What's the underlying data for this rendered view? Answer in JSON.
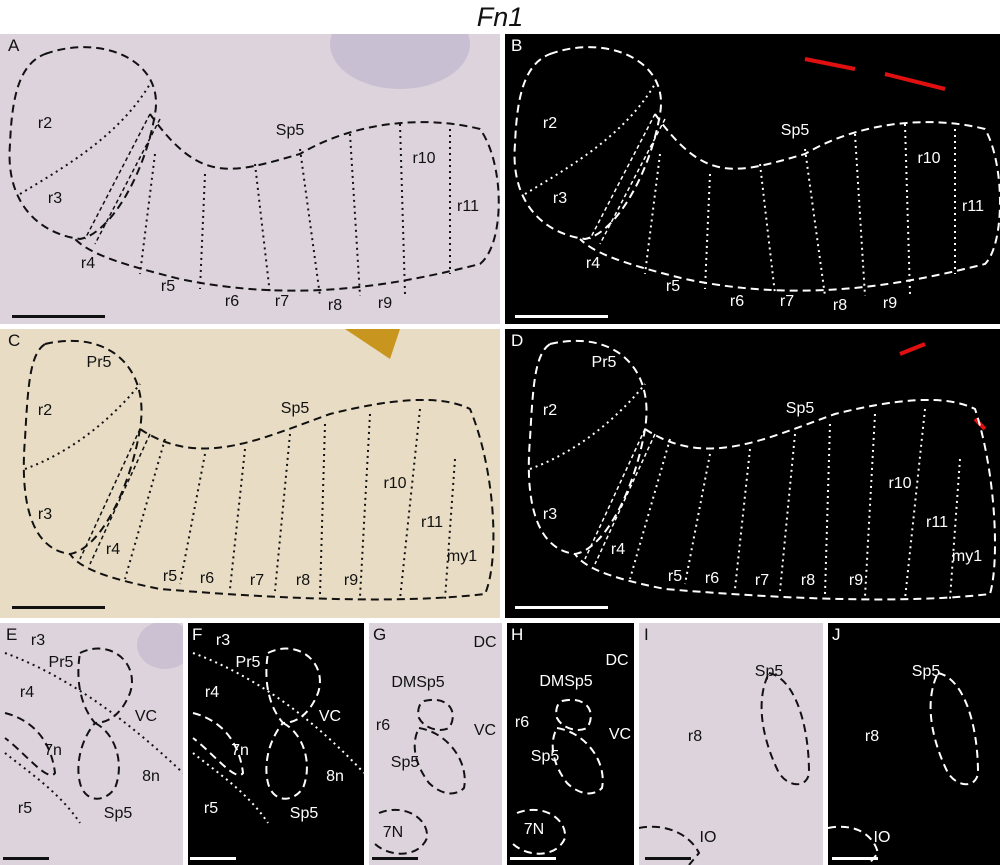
{
  "title": "Fn1",
  "colors": {
    "ish_background": "#ddd3dd",
    "dab_background": "#e8dcc4",
    "dark_background": "#000000",
    "outline_dark": "#111111",
    "outline_light": "#ffffff"
  },
  "panels": [
    {
      "letter": "A",
      "labels": [
        "r2",
        "r3",
        "r4",
        "Sp5",
        "r5",
        "r6",
        "r7",
        "r8",
        "r9",
        "r10",
        "r11"
      ]
    },
    {
      "letter": "B",
      "labels": [
        "r2",
        "r3",
        "r4",
        "Sp5",
        "r5",
        "r6",
        "r7",
        "r8",
        "r9",
        "r10",
        "r11"
      ]
    },
    {
      "letter": "C",
      "labels": [
        "Pr5",
        "r2",
        "r3",
        "r4",
        "Sp5",
        "r5",
        "r6",
        "r7",
        "r8",
        "r9",
        "r10",
        "r11",
        "my1"
      ]
    },
    {
      "letter": "D",
      "labels": [
        "Pr5",
        "r2",
        "r3",
        "r4",
        "Sp5",
        "r5",
        "r6",
        "r7",
        "r8",
        "r9",
        "r10",
        "r11",
        "my1"
      ]
    },
    {
      "letter": "E",
      "labels": [
        "r3",
        "Pr5",
        "r4",
        "VC",
        "7n",
        "8n",
        "r5",
        "Sp5"
      ]
    },
    {
      "letter": "F",
      "labels": [
        "r3",
        "Pr5",
        "r4",
        "VC",
        "7n",
        "8n",
        "r5",
        "Sp5"
      ]
    },
    {
      "letter": "G",
      "labels": [
        "DC",
        "DMSp5",
        "r6",
        "VC",
        "Sp5",
        "7N"
      ]
    },
    {
      "letter": "H",
      "labels": [
        "DC",
        "DMSp5",
        "r6",
        "VC",
        "Sp5",
        "7N"
      ]
    },
    {
      "letter": "I",
      "labels": [
        "Sp5",
        "r8",
        "IO"
      ]
    },
    {
      "letter": "J",
      "labels": [
        "Sp5",
        "r8",
        "IO"
      ]
    }
  ]
}
